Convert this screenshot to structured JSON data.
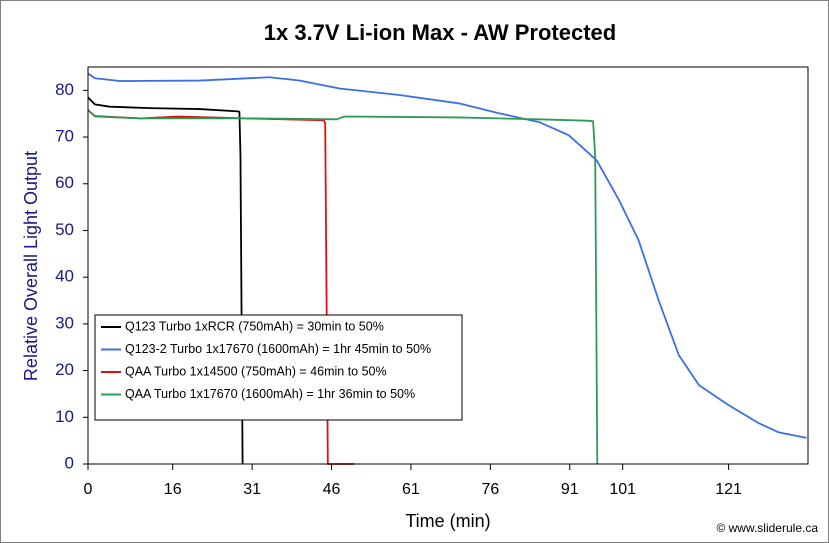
{
  "chart_data": {
    "type": "line",
    "title": "1x 3.7V Li-ion Max - AW Protected",
    "xlabel": "Time (min)",
    "ylabel": "Relative Overall Light Output",
    "source": "© www.sliderule.ca",
    "xlim": [
      0,
      136
    ],
    "xticks": [
      0,
      16,
      31,
      46,
      61,
      76,
      91,
      101,
      121
    ],
    "ylim": [
      0,
      85
    ],
    "yticks": [
      0,
      10,
      20,
      30,
      40,
      50,
      60,
      70,
      80
    ],
    "grid": false,
    "legend": "lower left",
    "series": [
      {
        "name": "Q123 Turbo 1xRCR (750mAh) = 30min to 50%",
        "color": "#000000",
        "x": [
          0,
          1.3,
          4.1,
          11.7,
          21.1,
          26.8,
          28.3,
          28.6,
          28.8,
          29.2
        ],
        "values": [
          78.5,
          77,
          76.5,
          76.2,
          76,
          75.6,
          75.5,
          75.4,
          66,
          0
        ]
      },
      {
        "name": "Q123-2 Turbo 1x17670 (1600mAh) = 1hr 45min to 50%",
        "color": "#3c6ee6",
        "x": [
          0,
          1.3,
          6.0,
          21.1,
          34.3,
          39.9,
          47.5,
          58.8,
          70.1,
          77.6,
          85.2,
          90.8,
          96.1,
          100.3,
          104.0,
          107.8,
          111.6,
          115.4,
          121.0,
          126.6,
          130.4,
          135.7
        ],
        "values": [
          83.6,
          82.6,
          82,
          82.1,
          82.8,
          82.1,
          80.4,
          79,
          77.2,
          75.1,
          73.2,
          70.4,
          65,
          56.5,
          47.9,
          35,
          23.3,
          16.9,
          12.6,
          8.8,
          6.8,
          5.6
        ]
      },
      {
        "name": "QAA Turbo 1x14500 (750mAh) = 46min to 50%",
        "color": "#e01010",
        "x": [
          0,
          1.3,
          10,
          17,
          30,
          44.5,
          44.8,
          45.3,
          50.3
        ],
        "values": [
          75.8,
          74.5,
          74,
          74.4,
          74,
          73.6,
          73,
          0,
          0
        ]
      },
      {
        "name": "QAA Turbo 1x17670 (1600mAh) = 1hr 36min to 50%",
        "color": "#2e9a5a",
        "x": [
          0,
          1.3,
          10,
          30,
          47,
          48.4,
          70,
          85,
          94.2,
          95.4,
          95.8,
          96.2
        ],
        "values": [
          75.8,
          74.4,
          74,
          74,
          73.8,
          74.4,
          74.2,
          73.8,
          73.5,
          73.4,
          66,
          0
        ]
      }
    ]
  }
}
